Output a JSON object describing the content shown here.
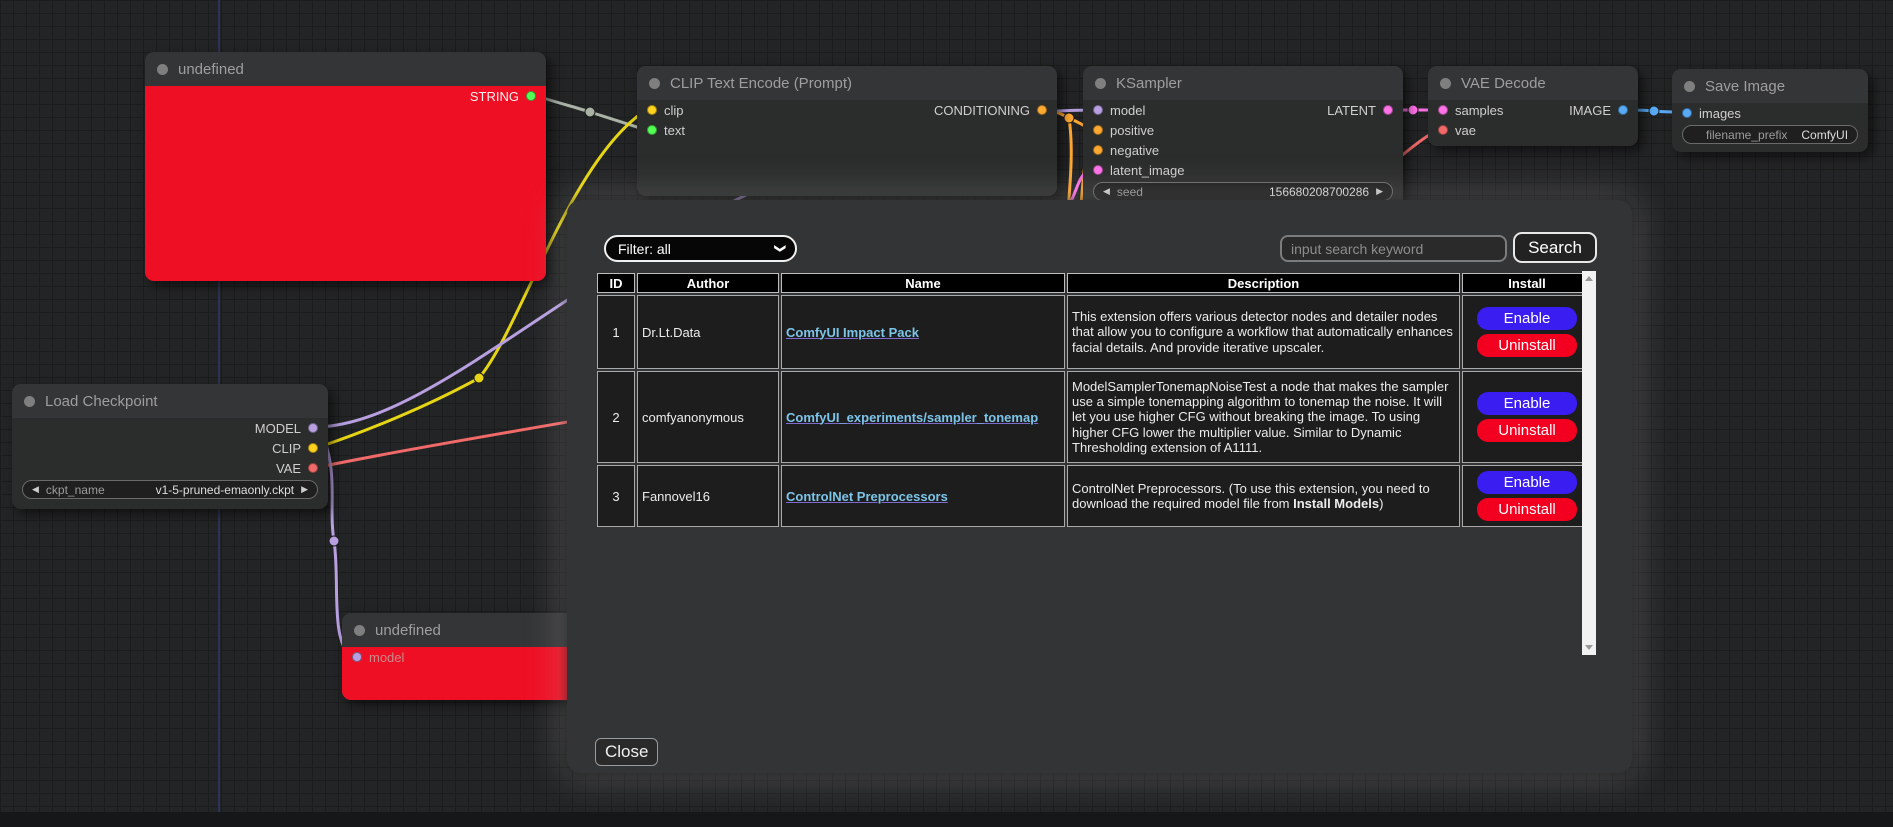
{
  "colors": {
    "node_red": "#ee0f24",
    "enable_button": "#3a1df0",
    "uninstall_button": "#f30021",
    "link_blue": "#7cc4e8",
    "slot_model": "#b79fe0",
    "slot_clip": "#ffd21f",
    "slot_vae": "#f16a6a",
    "slot_conditioning": "#ffa931",
    "slot_latent": "#ff72e8",
    "slot_image": "#58aaf5",
    "slot_string": "#54ff54",
    "wire_gray": "#a9b2a5",
    "wire_yellow": "#e6d515"
  },
  "nodes": {
    "undefined_top": {
      "title": "undefined",
      "outputs": [
        {
          "name": "STRING"
        }
      ]
    },
    "clip_encode": {
      "title": "CLIP Text Encode (Prompt)",
      "inputs": [
        {
          "name": "clip"
        },
        {
          "name": "text"
        }
      ],
      "outputs": [
        {
          "name": "CONDITIONING"
        }
      ]
    },
    "ksampler": {
      "title": "KSampler",
      "inputs": [
        {
          "name": "model"
        },
        {
          "name": "positive"
        },
        {
          "name": "negative"
        },
        {
          "name": "latent_image"
        }
      ],
      "outputs": [
        {
          "name": "LATENT"
        }
      ],
      "widgets": [
        {
          "name": "seed",
          "value": "156680208700286"
        }
      ]
    },
    "vae_decode": {
      "title": "VAE Decode",
      "inputs": [
        {
          "name": "samples"
        },
        {
          "name": "vae"
        }
      ],
      "outputs": [
        {
          "name": "IMAGE"
        }
      ]
    },
    "save_image": {
      "title": "Save Image",
      "inputs": [
        {
          "name": "images"
        }
      ],
      "widgets": [
        {
          "name": "filename_prefix",
          "value": "ComfyUI"
        }
      ]
    },
    "load_checkpoint": {
      "title": "Load Checkpoint",
      "outputs": [
        {
          "name": "MODEL"
        },
        {
          "name": "CLIP"
        },
        {
          "name": "VAE"
        }
      ],
      "widgets": [
        {
          "name": "ckpt_name",
          "value": "v1-5-pruned-emaonly.ckpt"
        }
      ]
    },
    "undefined_bottom": {
      "title": "undefined",
      "inputs": [
        {
          "name": "model"
        }
      ]
    }
  },
  "modal": {
    "filter_label": "Filter: all",
    "search_placeholder": "input search keyword",
    "search_button": "Search",
    "close_button": "Close",
    "table": {
      "headers": [
        "ID",
        "Author",
        "Name",
        "Description",
        "Install"
      ],
      "rows": [
        {
          "id": "1",
          "author": "Dr.Lt.Data",
          "name": "ComfyUI Impact Pack",
          "description": [
            {
              "text": "This extension offers various detector nodes and detailer nodes that allow you to configure a workflow that automatically enhances facial details. And provide iterative upscaler.",
              "bold": false
            }
          ],
          "buttons": [
            "Enable",
            "Uninstall"
          ]
        },
        {
          "id": "2",
          "author": "comfyanonymous",
          "name": "ComfyUI_experiments/sampler_tonemap",
          "description": [
            {
              "text": "ModelSamplerTonemapNoiseTest a node that makes the sampler use a simple tonemapping algorithm to tonemap the noise. It will let you use higher CFG without breaking the image. To using higher CFG lower the multiplier value. Similar to Dynamic Thresholding extension of A1111.",
              "bold": false
            }
          ],
          "buttons": [
            "Enable",
            "Uninstall"
          ]
        },
        {
          "id": "3",
          "author": "Fannovel16",
          "name": "ControlNet Preprocessors",
          "description": [
            {
              "text": "ControlNet Preprocessors. (To use this extension, you need to download the required model file from ",
              "bold": false
            },
            {
              "text": "Install Models",
              "bold": true
            },
            {
              "text": ")",
              "bold": false
            }
          ],
          "buttons": [
            "Enable",
            "Uninstall"
          ]
        }
      ]
    }
  }
}
